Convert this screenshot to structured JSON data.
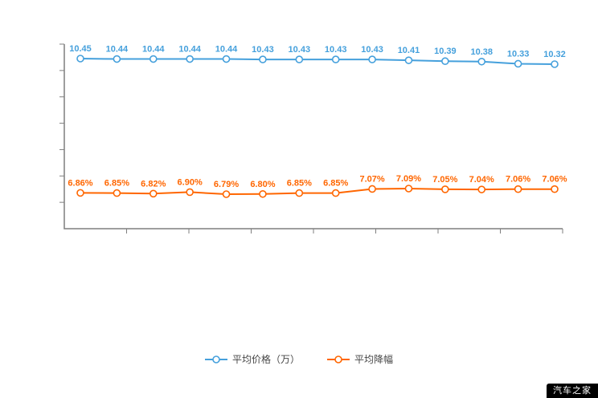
{
  "chart_data": {
    "type": "line",
    "title": "",
    "legend_position": "bottom",
    "x": [
      1,
      2,
      3,
      4,
      5,
      6,
      7,
      8,
      9,
      10,
      11,
      12,
      13,
      14
    ],
    "x_tick_labels_visible": false,
    "y_tick_labels_visible": false,
    "grid": false,
    "series": [
      {
        "name": "平均价格（万）",
        "color": "#45a0dc",
        "decimals": 2,
        "label_suffix": "",
        "values": [
          10.45,
          10.44,
          10.44,
          10.44,
          10.44,
          10.43,
          10.43,
          10.43,
          10.43,
          10.41,
          10.39,
          10.38,
          10.33,
          10.32
        ]
      },
      {
        "name": "平均降幅",
        "color": "#ff6600",
        "decimals": 2,
        "label_suffix": "%",
        "values": [
          6.86,
          6.85,
          6.82,
          6.9,
          6.79,
          6.8,
          6.85,
          6.85,
          7.07,
          7.09,
          7.05,
          7.04,
          7.06,
          7.06
        ]
      }
    ]
  },
  "colors": {
    "axis": "#7f7f7f",
    "background": "#ffffff",
    "legend_text": "#464646"
  },
  "watermark": {
    "text": "汽车之家",
    "bg": "#000000",
    "fg": "#ffffff"
  }
}
